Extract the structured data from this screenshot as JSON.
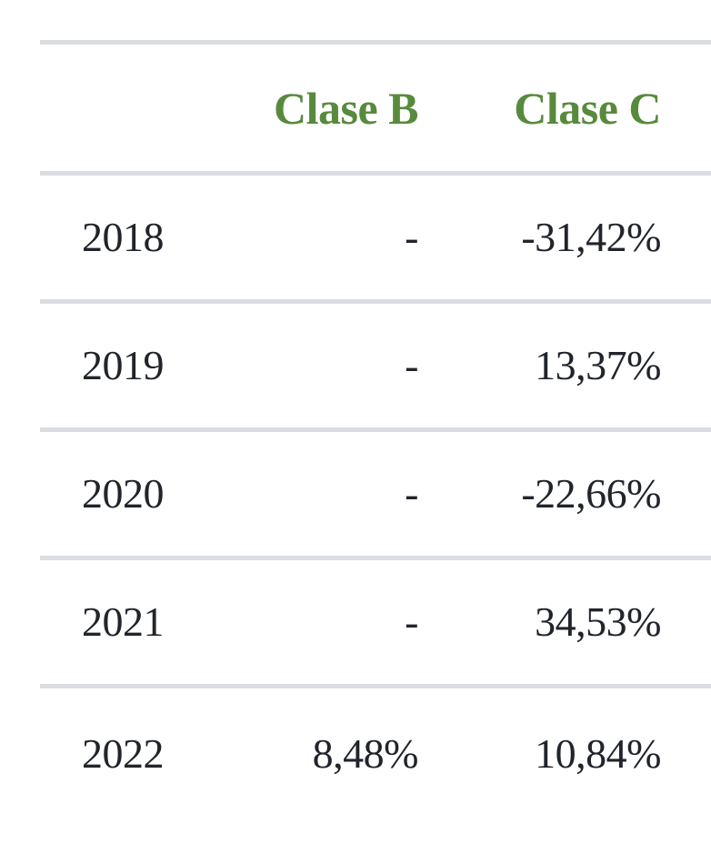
{
  "table": {
    "columns": [
      "Clase B",
      "Clase C"
    ],
    "rows": [
      {
        "year": "2018",
        "clase_b": "-",
        "clase_c": "-31,42%"
      },
      {
        "year": "2019",
        "clase_b": "-",
        "clase_c": "13,37%"
      },
      {
        "year": "2020",
        "clase_b": "-",
        "clase_c": "-22,66%"
      },
      {
        "year": "2021",
        "clase_b": "-",
        "clase_c": "34,53%"
      },
      {
        "year": "2022",
        "clase_b": "8,48%",
        "clase_c": "10,84%"
      }
    ]
  },
  "colors": {
    "header_green": "#588a3d",
    "text_dark": "#21242b",
    "separator": "#d9dce1",
    "background": "#ffffff"
  },
  "chart_data": {
    "type": "table",
    "columns": [
      "",
      "Clase B",
      "Clase C"
    ],
    "x": [
      "2018",
      "2019",
      "2020",
      "2021",
      "2022"
    ],
    "rows": [
      [
        "2018",
        "-",
        "-31,42%"
      ],
      [
        "2019",
        "-",
        "13,37%"
      ],
      [
        "2020",
        "-",
        "-22,66%"
      ],
      [
        "2021",
        "-",
        "34,53%"
      ],
      [
        "2022",
        "8,48%",
        "10,84%"
      ]
    ],
    "series": [
      {
        "name": "Clase B",
        "values": [
          null,
          null,
          null,
          null,
          8.48
        ]
      },
      {
        "name": "Clase C",
        "values": [
          -31.42,
          13.37,
          -22.66,
          34.53,
          10.84
        ]
      }
    ],
    "unit": "%",
    "layout_hints": "annual returns table, year column left-aligned, value columns right-aligned, green bold headers, light gray row separators"
  }
}
